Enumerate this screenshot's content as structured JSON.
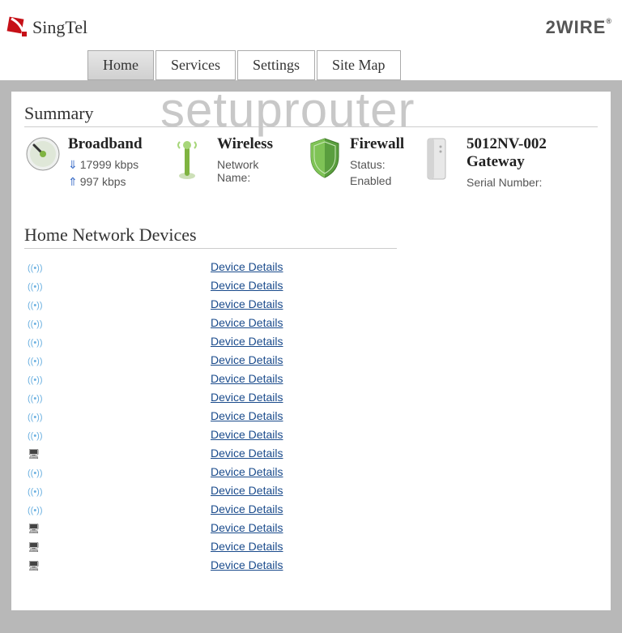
{
  "brand": {
    "isp": "SingTel",
    "vendor": "2WIRE"
  },
  "watermark": "setuprouter",
  "nav": {
    "tabs": [
      {
        "label": "Home",
        "active": true
      },
      {
        "label": "Services",
        "active": false
      },
      {
        "label": "Settings",
        "active": false
      },
      {
        "label": "Site Map",
        "active": false
      }
    ]
  },
  "sections": {
    "summary_title": "Summary",
    "devices_title": "Home Network Devices"
  },
  "summary": {
    "broadband": {
      "title": "Broadband",
      "down": "17999 kbps",
      "up": "997 kbps"
    },
    "wireless": {
      "title": "Wireless",
      "name_label": "Network Name:"
    },
    "firewall": {
      "title": "Firewall",
      "status_label": "Status:",
      "status_value": "Enabled"
    },
    "gateway": {
      "title": "5012NV-002 Gateway",
      "serial_label": "Serial Number:"
    }
  },
  "device_link_label": "Device Details",
  "devices": [
    {
      "type": "wifi"
    },
    {
      "type": "wifi"
    },
    {
      "type": "wifi"
    },
    {
      "type": "wifi"
    },
    {
      "type": "wifi"
    },
    {
      "type": "wifi"
    },
    {
      "type": "wifi"
    },
    {
      "type": "wifi"
    },
    {
      "type": "wifi"
    },
    {
      "type": "wifi"
    },
    {
      "type": "pc"
    },
    {
      "type": "wifi"
    },
    {
      "type": "wifi"
    },
    {
      "type": "wifi"
    },
    {
      "type": "pc"
    },
    {
      "type": "pc"
    },
    {
      "type": "pc"
    }
  ],
  "colors": {
    "tab_active_bg": "#d8d8d8",
    "gray_bg": "#b8b8b8",
    "link": "#1a4b8c",
    "watermark": "#c8c8c8",
    "broadband_green": "#7fb341",
    "wireless_green": "#7fb341",
    "firewall_green": "#5a9e3e",
    "gateway_gray": "#dcdcdc"
  }
}
